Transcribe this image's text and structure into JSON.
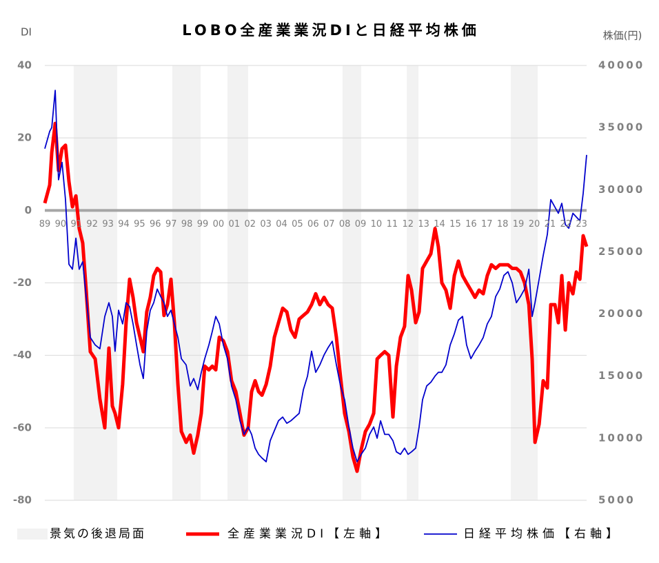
{
  "chart_data": {
    "type": "line",
    "title": "LOBO全産業業況DIと日経平均株価",
    "y_axis_label": "DI",
    "y2_axis_label": "株価(円)",
    "x": [
      1989.0,
      1989.31,
      1989.44,
      1989.66,
      1989.87,
      1990.09,
      1990.31,
      1990.53,
      1990.75,
      1990.97,
      1991.18,
      1991.4,
      1991.62,
      1991.88,
      1992.19,
      1992.49,
      1992.8,
      1993.06,
      1993.28,
      1993.45,
      1993.67,
      1993.93,
      1994.15,
      1994.37,
      1994.59,
      1994.81,
      1995.03,
      1995.24,
      1995.46,
      1995.68,
      1995.9,
      1996.12,
      1996.34,
      1996.55,
      1996.77,
      1996.99,
      1997.21,
      1997.43,
      1997.65,
      1997.95,
      1998.21,
      1998.43,
      1998.69,
      1998.91,
      1999.13,
      1999.39,
      1999.61,
      1999.83,
      2000.05,
      2000.31,
      2000.57,
      2000.83,
      2001.1,
      2001.36,
      2001.62,
      2001.88,
      2002.1,
      2002.32,
      2002.54,
      2002.76,
      2003.02,
      2003.28,
      2003.54,
      2003.8,
      2004.07,
      2004.33,
      2004.59,
      2004.85,
      2005.11,
      2005.38,
      2005.64,
      2005.9,
      2006.16,
      2006.42,
      2006.69,
      2006.95,
      2007.21,
      2007.47,
      2007.73,
      2007.99,
      2008.26,
      2008.52,
      2008.78,
      2009.04,
      2009.31,
      2009.57,
      2009.83,
      2010.05,
      2010.27,
      2010.53,
      2010.79,
      2011.05,
      2011.27,
      2011.53,
      2011.79,
      2012.01,
      2012.23,
      2012.49,
      2012.71,
      2012.93,
      2013.19,
      2013.45,
      2013.72,
      2013.93,
      2014.15,
      2014.41,
      2014.68,
      2014.94,
      2015.2,
      2015.46,
      2015.72,
      2015.99,
      2016.25,
      2016.51,
      2016.77,
      2017.03,
      2017.29,
      2017.56,
      2017.82,
      2018.08,
      2018.34,
      2018.61,
      2018.87,
      2019.13,
      2019.39,
      2019.66,
      2019.87,
      2020.05,
      2020.31,
      2020.57,
      2020.83,
      2021.05,
      2021.31,
      2021.53,
      2021.75,
      2021.97,
      2022.19,
      2022.45,
      2022.67,
      2022.89,
      2023.1,
      2023.32
    ],
    "xlim": [
      1989,
      2023.32
    ],
    "xticks": [
      {
        "value": 1989,
        "label": "89"
      },
      {
        "value": 1990,
        "label": "90"
      },
      {
        "value": 1991,
        "label": "91"
      },
      {
        "value": 1992,
        "label": "92"
      },
      {
        "value": 1993,
        "label": "93"
      },
      {
        "value": 1994,
        "label": "94"
      },
      {
        "value": 1995,
        "label": "95"
      },
      {
        "value": 1996,
        "label": "96"
      },
      {
        "value": 1997,
        "label": "97"
      },
      {
        "value": 1998,
        "label": "98"
      },
      {
        "value": 1999,
        "label": "99"
      },
      {
        "value": 2000,
        "label": "00"
      },
      {
        "value": 2001,
        "label": "01"
      },
      {
        "value": 2002,
        "label": "02"
      },
      {
        "value": 2003,
        "label": "03"
      },
      {
        "value": 2004,
        "label": "04"
      },
      {
        "value": 2005,
        "label": "05"
      },
      {
        "value": 2006,
        "label": "06"
      },
      {
        "value": 2007,
        "label": "07"
      },
      {
        "value": 2008,
        "label": "08"
      },
      {
        "value": 2009,
        "label": "09"
      },
      {
        "value": 2010,
        "label": "10"
      },
      {
        "value": 2011,
        "label": "11"
      },
      {
        "value": 2012,
        "label": "12"
      },
      {
        "value": 2013,
        "label": "13"
      },
      {
        "value": 2014,
        "label": "14"
      },
      {
        "value": 2015,
        "label": "15"
      },
      {
        "value": 2016,
        "label": "16"
      },
      {
        "value": 2017,
        "label": "17"
      },
      {
        "value": 2018,
        "label": "18"
      },
      {
        "value": 2019,
        "label": "19"
      },
      {
        "value": 2020,
        "label": "20"
      },
      {
        "value": 2021,
        "label": "21"
      },
      {
        "value": 2022,
        "label": "22"
      },
      {
        "value": 2023,
        "label": "23"
      }
    ],
    "ylim": [
      -80,
      40
    ],
    "yticks": [
      40,
      20,
      0,
      -20,
      -40,
      -60,
      -80
    ],
    "y2lim": [
      5000,
      40000
    ],
    "y2ticks": [
      40000,
      35000,
      30000,
      25000,
      20000,
      15000,
      10000,
      5000
    ],
    "grid": true,
    "recessions": {
      "name": "景気の後退局面",
      "color": "#f2f2f2",
      "periods": [
        [
          1990.83,
          1993.59
        ],
        [
          1997.08,
          1998.87
        ],
        [
          2000.57,
          2001.88
        ],
        [
          2007.86,
          2009.04
        ],
        [
          2011.93,
          2012.67
        ],
        [
          2018.52,
          2020.22
        ]
      ]
    },
    "series": [
      {
        "name": "全産業業況DI【左軸】",
        "color": "#ff0000",
        "values": [
          2,
          7,
          16,
          24,
          11,
          17,
          18,
          8,
          1,
          4,
          -5,
          -9,
          -22,
          -39,
          -41,
          -52,
          -60,
          -38,
          -54,
          -56,
          -60,
          -48,
          -31,
          -19,
          -24,
          -31,
          -35,
          -39,
          -28,
          -24,
          -18,
          -16,
          -17,
          -29,
          -26,
          -19,
          -31,
          -48,
          -61,
          -64,
          -62,
          -67,
          -62,
          -56,
          -43,
          -44,
          -43,
          -44,
          -35,
          -36,
          -39,
          -47,
          -50,
          -56,
          -62,
          -60,
          -50,
          -47,
          -50,
          -51,
          -48,
          -43,
          -35,
          -31,
          -27,
          -28,
          -33,
          -35,
          -30,
          -29,
          -28,
          -26,
          -23,
          -26,
          -24,
          -26,
          -27,
          -35,
          -46,
          -56,
          -61,
          -68,
          -72,
          -66,
          -61,
          -59,
          -56,
          -41,
          -40,
          -39,
          -40,
          -57,
          -43,
          -35,
          -32,
          -18,
          -22,
          -31,
          -28,
          -16,
          -14,
          -12,
          -5,
          -10,
          -20,
          -22,
          -27,
          -18,
          -14,
          -18,
          -20,
          -22,
          -24,
          -22,
          -23,
          -18,
          -15,
          -16,
          -15,
          -15,
          -15,
          -16,
          -16,
          -17,
          -20,
          -26,
          -41,
          -64,
          -59,
          -47,
          -49,
          -26,
          -26,
          -31,
          -18,
          -33,
          -20,
          -23,
          -17,
          -19,
          -7,
          -10
        ]
      },
      {
        "name": "日経平均株価【右軸】",
        "color": "#0000cc",
        "axis": "y2",
        "values": [
          33300,
          34700,
          35000,
          38000,
          30800,
          32200,
          29200,
          24000,
          23600,
          26100,
          23600,
          24200,
          21400,
          18100,
          17500,
          17200,
          19800,
          20900,
          19800,
          17000,
          20300,
          19200,
          20900,
          20600,
          19200,
          17500,
          15900,
          14800,
          18600,
          20300,
          20900,
          22000,
          21400,
          20900,
          19800,
          20300,
          19200,
          18100,
          16400,
          15900,
          14200,
          14800,
          13900,
          15300,
          16400,
          17500,
          18600,
          19800,
          19200,
          17500,
          16400,
          14200,
          13100,
          11400,
          10300,
          10900,
          10300,
          9200,
          8700,
          8400,
          8100,
          9800,
          10600,
          11400,
          11700,
          11200,
          11400,
          11700,
          12000,
          13900,
          15000,
          17000,
          15300,
          15900,
          16700,
          17300,
          17800,
          15900,
          14200,
          13100,
          10900,
          9200,
          8100,
          8700,
          9200,
          10300,
          10900,
          10000,
          11400,
          10300,
          10300,
          9800,
          8900,
          8700,
          9200,
          8700,
          8900,
          9200,
          10900,
          13100,
          14200,
          14500,
          15000,
          15300,
          15300,
          15900,
          17500,
          18400,
          19500,
          19800,
          17500,
          16400,
          17000,
          17500,
          18100,
          19200,
          19800,
          21400,
          22000,
          23100,
          23400,
          22500,
          20900,
          21400,
          22000,
          23600,
          19800,
          20900,
          22800,
          24700,
          26400,
          29200,
          28600,
          28100,
          28900,
          27200,
          26900,
          28100,
          27800,
          27500,
          29700,
          32800
        ]
      }
    ]
  }
}
